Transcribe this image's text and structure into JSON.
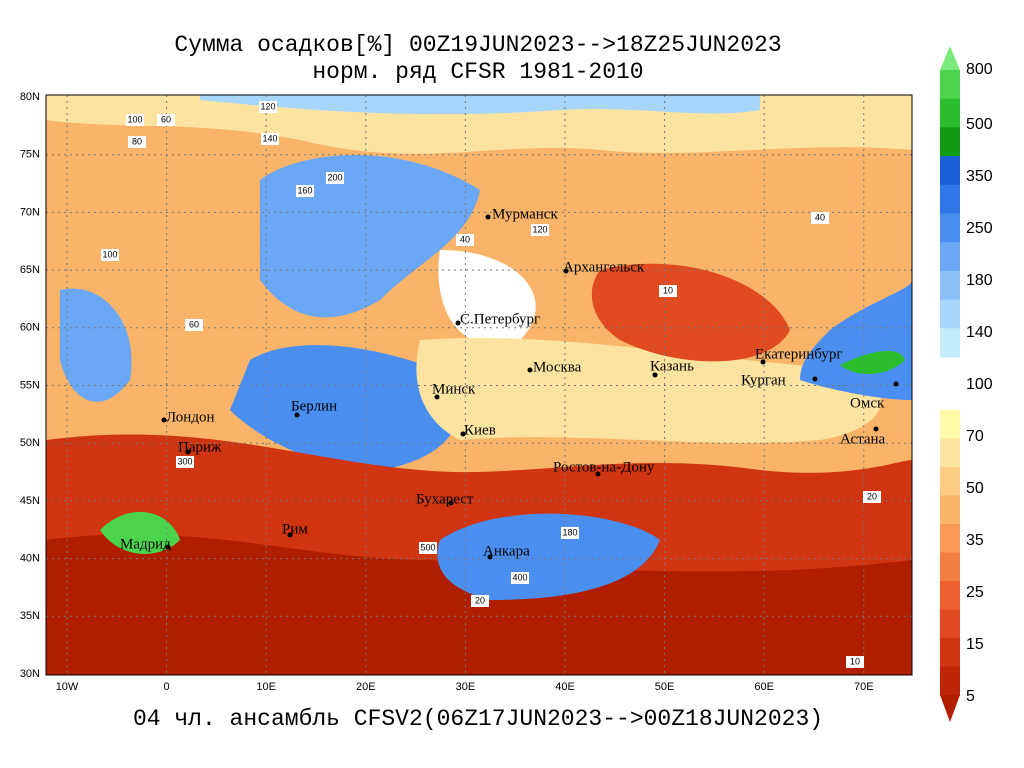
{
  "header": {
    "title": "Сумма осадков[%] 00Z19JUN2023-->18Z25JUN2023",
    "subtitle": "норм. ряд CFSR 1981-2010"
  },
  "footer": "04 чл. ансамбль CFSV2(06Z17JUN2023-->00Z18JUN2023)",
  "map": {
    "lat_labels": [
      "80N",
      "75N",
      "70N",
      "65N",
      "60N",
      "55N",
      "50N",
      "45N",
      "40N",
      "35N",
      "30N"
    ],
    "lon_labels": [
      "10W",
      "0",
      "10E",
      "20E",
      "30E",
      "40E",
      "50E",
      "60E",
      "70E"
    ],
    "cities": [
      "Мурманск",
      "Архангельск",
      "С.Петербург",
      "Москва",
      "Казань",
      "Екатеринбург",
      "Курган",
      "Омск",
      "Астана",
      "Минск",
      "Берлин",
      "Лондон",
      "Париж",
      "Киев",
      "Ростов-на-Дону",
      "Бухарест",
      "Рим",
      "Мадрид",
      "Анкара"
    ],
    "contour_labels": [
      "120",
      "100",
      "60",
      "80",
      "140",
      "160",
      "200",
      "40",
      "10",
      "20",
      "300",
      "400",
      "500",
      "180",
      "60",
      "100",
      "120",
      "40",
      "20",
      "10"
    ]
  },
  "colorbar": {
    "labels": [
      "800",
      "500",
      "350",
      "250",
      "180",
      "140",
      "100",
      "70",
      "50",
      "35",
      "25",
      "15",
      "5"
    ],
    "upper_colors": [
      "#7ae87a",
      "#4cd34c",
      "#2cbd2c",
      "#109c10",
      "#1b5fd6",
      "#2f77e8",
      "#4a8ff0",
      "#6aa8f5",
      "#8cc0f8",
      "#a8d6fa",
      "#c2ecfb"
    ],
    "lower_colors": [
      "#fffaa8",
      "#fde3a0",
      "#fccd82",
      "#f9b46a",
      "#f89a55",
      "#f27e44",
      "#ec6130",
      "#e04a20",
      "#cf3511",
      "#bd2607",
      "#b01e00"
    ]
  }
}
